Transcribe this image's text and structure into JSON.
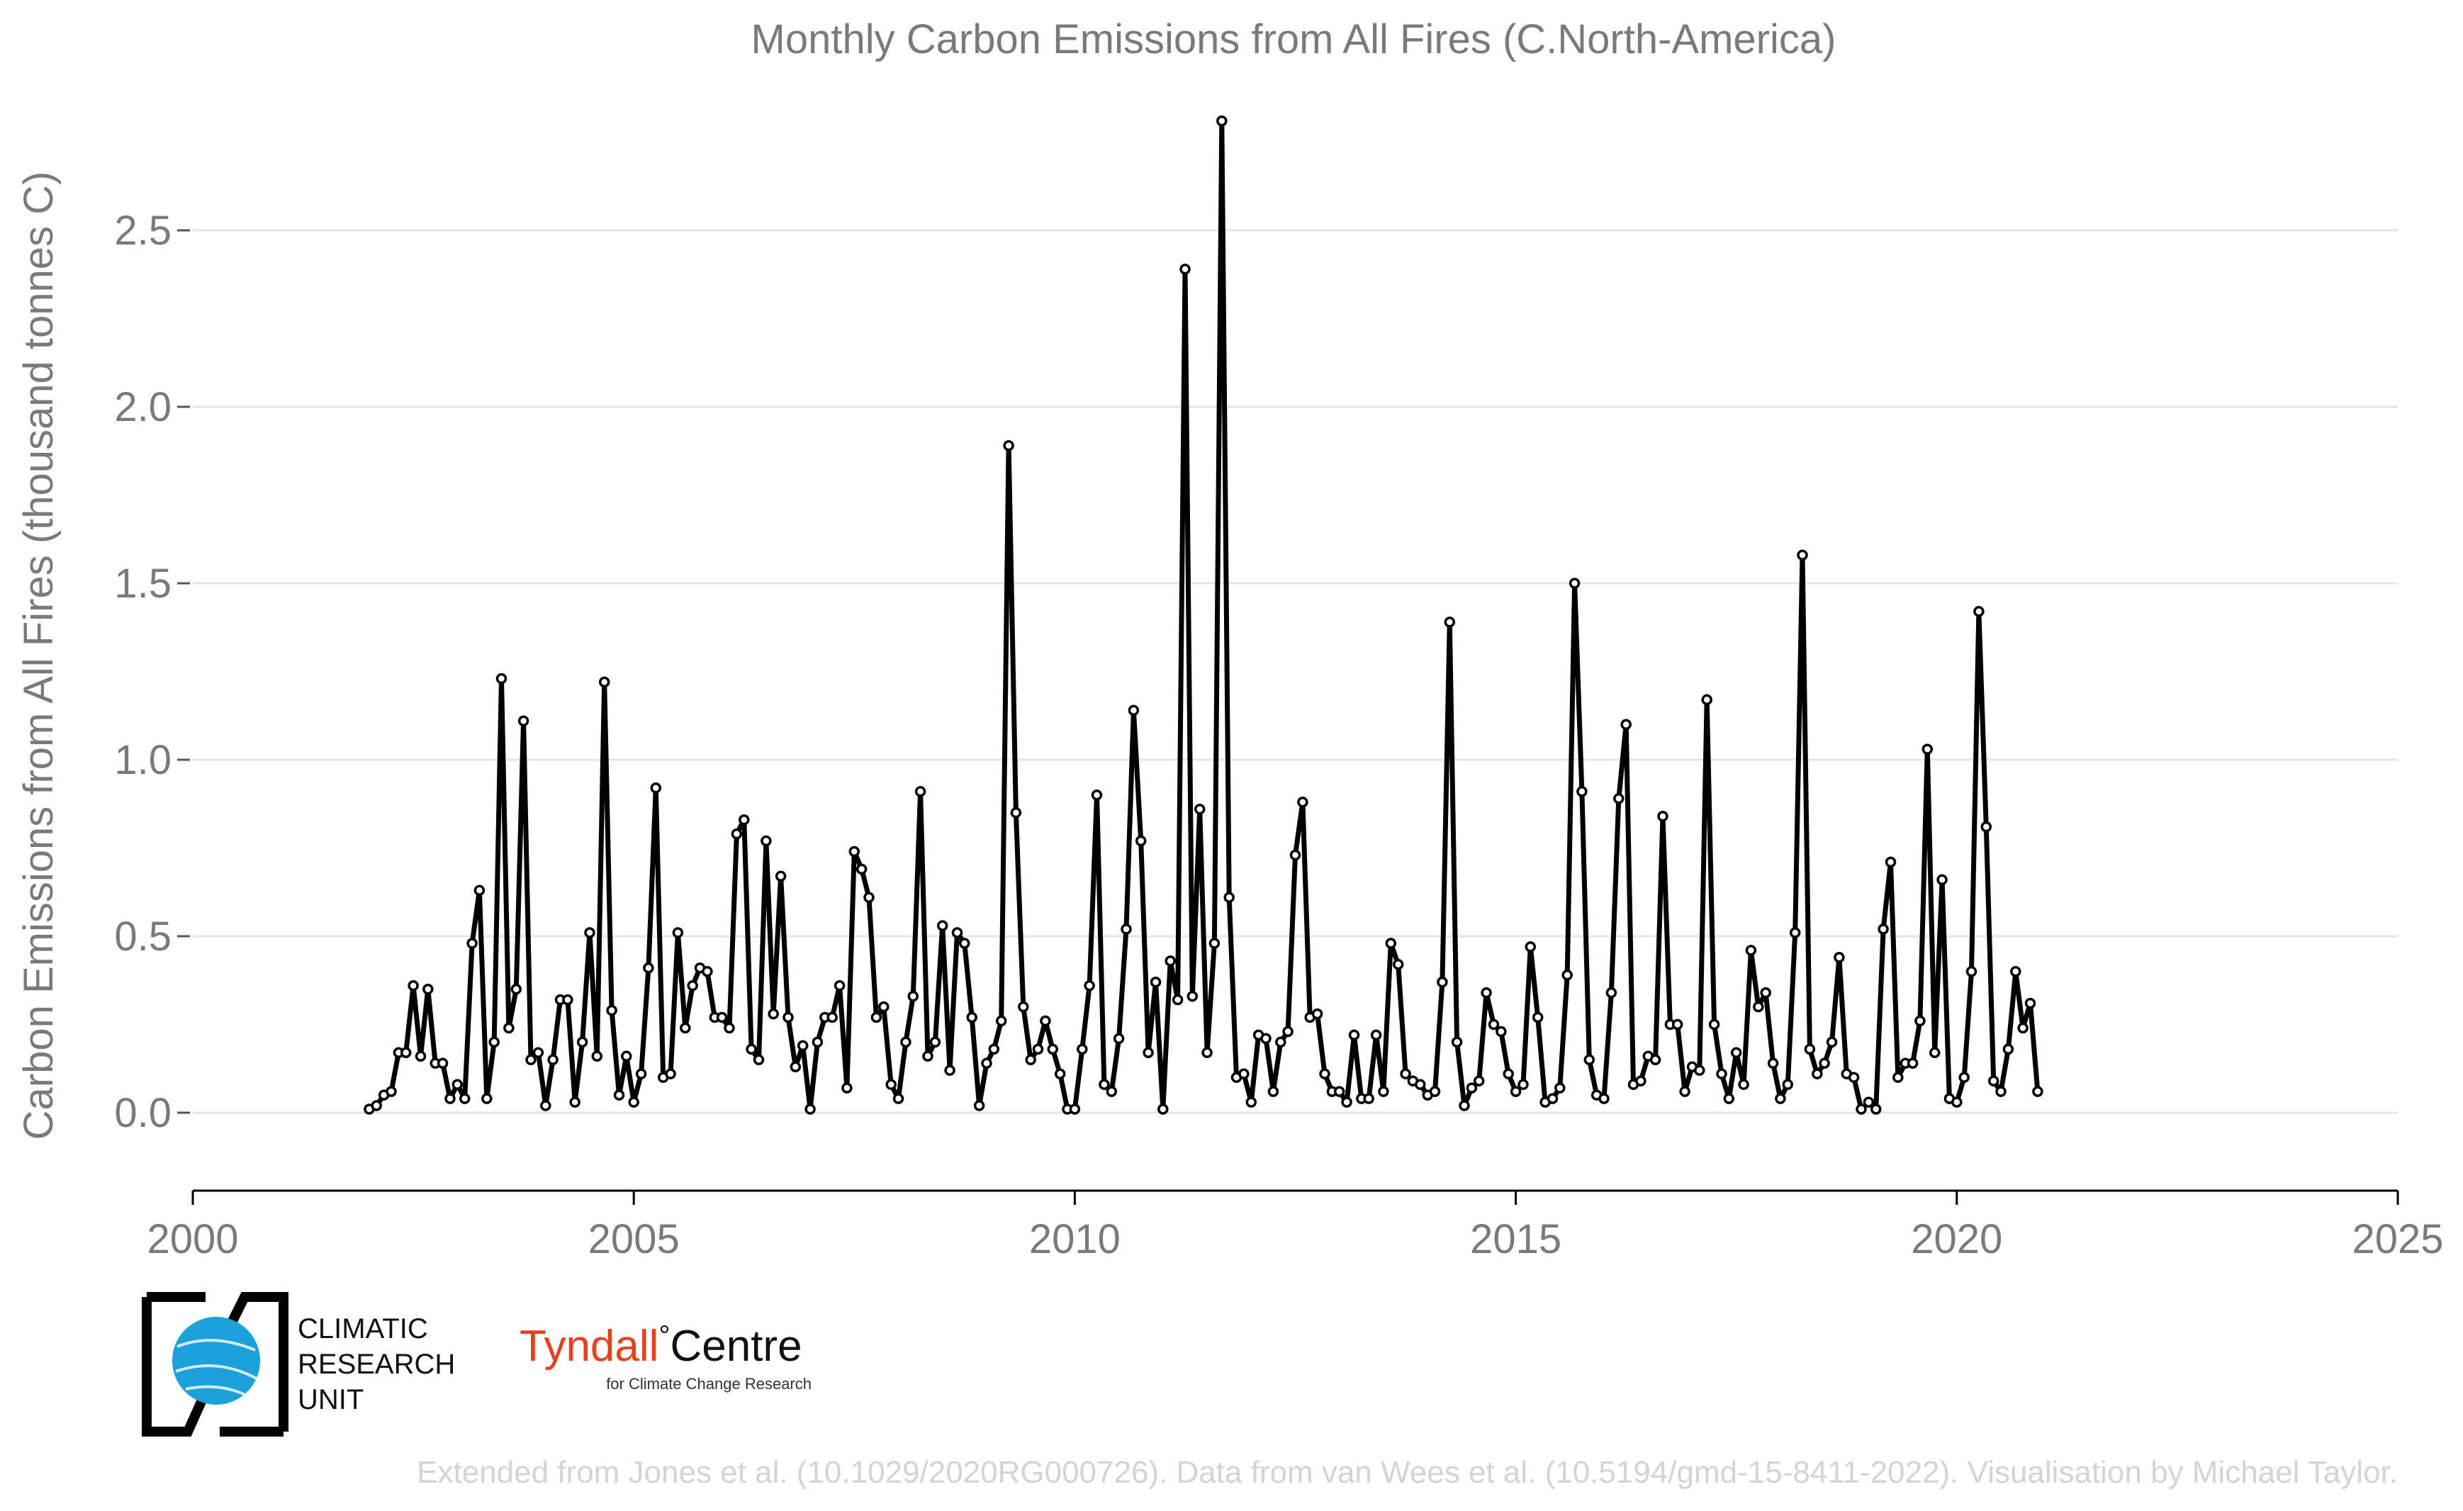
{
  "chart_data": {
    "type": "line",
    "title": "Monthly Carbon Emissions from All Fires (C.North-America)",
    "xlabel": "",
    "ylabel": "Carbon Emissions from All Fires (thousand tonnes C)",
    "xlim": [
      2000,
      2025
    ],
    "ylim": [
      -0.1,
      2.85
    ],
    "x_ticks": [
      2000,
      2005,
      2010,
      2015,
      2020,
      2025
    ],
    "y_ticks": [
      0.0,
      0.5,
      1.0,
      1.5,
      2.0,
      2.5
    ],
    "y_tick_labels": [
      "0.0",
      "0.5",
      "1.0",
      "1.5",
      "2.0",
      "2.5"
    ],
    "grid": "horizontal",
    "x_start": "2002-01",
    "x_end": "2020-12",
    "x_step": "month",
    "series": [
      {
        "name": "",
        "color": "#000000",
        "marker_fill": "#ffffff",
        "values": [
          0.01,
          0.02,
          0.05,
          0.06,
          0.17,
          0.17,
          0.36,
          0.16,
          0.35,
          0.14,
          0.14,
          0.04,
          0.08,
          0.04,
          0.48,
          0.63,
          0.04,
          0.2,
          1.23,
          0.24,
          0.35,
          1.11,
          0.15,
          0.17,
          0.02,
          0.15,
          0.32,
          0.32,
          0.03,
          0.2,
          0.51,
          0.16,
          1.22,
          0.29,
          0.05,
          0.16,
          0.03,
          0.11,
          0.41,
          0.92,
          0.1,
          0.11,
          0.51,
          0.24,
          0.36,
          0.41,
          0.4,
          0.27,
          0.27,
          0.24,
          0.79,
          0.83,
          0.18,
          0.15,
          0.77,
          0.28,
          0.67,
          0.27,
          0.13,
          0.19,
          0.01,
          0.2,
          0.27,
          0.27,
          0.36,
          0.07,
          0.74,
          0.69,
          0.61,
          0.27,
          0.3,
          0.08,
          0.04,
          0.2,
          0.33,
          0.91,
          0.16,
          0.2,
          0.53,
          0.12,
          0.51,
          0.48,
          0.27,
          0.02,
          0.14,
          0.18,
          0.26,
          1.89,
          0.85,
          0.3,
          0.15,
          0.18,
          0.26,
          0.18,
          0.11,
          0.01,
          0.01,
          0.18,
          0.36,
          0.9,
          0.08,
          0.06,
          0.21,
          0.52,
          1.14,
          0.77,
          0.17,
          0.37,
          0.01,
          0.43,
          0.32,
          2.39,
          0.33,
          0.86,
          0.17,
          0.48,
          2.81,
          0.61,
          0.1,
          0.11,
          0.03,
          0.22,
          0.21,
          0.06,
          0.2,
          0.23,
          0.73,
          0.88,
          0.27,
          0.28,
          0.11,
          0.06,
          0.06,
          0.03,
          0.22,
          0.04,
          0.04,
          0.22,
          0.06,
          0.48,
          0.42,
          0.11,
          0.09,
          0.08,
          0.05,
          0.06,
          0.37,
          1.39,
          0.2,
          0.02,
          0.07,
          0.09,
          0.34,
          0.25,
          0.23,
          0.11,
          0.06,
          0.08,
          0.47,
          0.27,
          0.03,
          0.04,
          0.07,
          0.39,
          1.5,
          0.91,
          0.15,
          0.05,
          0.04,
          0.34,
          0.89,
          1.1,
          0.08,
          0.09,
          0.16,
          0.15,
          0.84,
          0.25,
          0.25,
          0.06,
          0.13,
          0.12,
          1.17,
          0.25,
          0.11,
          0.04,
          0.17,
          0.08,
          0.46,
          0.3,
          0.34,
          0.14,
          0.04,
          0.08,
          0.51,
          1.58,
          0.18,
          0.11,
          0.14,
          0.2,
          0.44,
          0.11,
          0.1,
          0.01,
          0.03,
          0.01,
          0.52,
          0.71,
          0.1,
          0.14,
          0.14,
          0.26,
          1.03,
          0.17,
          0.66,
          0.04,
          0.03,
          0.1,
          0.4,
          1.42,
          0.81,
          0.09,
          0.06,
          0.18,
          0.4,
          0.24,
          0.31,
          0.06
        ]
      }
    ]
  },
  "footer": {
    "credit": "Extended from Jones et al. (10.1029/2020RG000726). Data from van Wees et al. (10.5194/gmd-15-8411-2022). Visualisation by Michael Taylor.",
    "cru_line1": "CLIMATIC",
    "cru_line2": "RESEARCH",
    "cru_line3": "UNIT",
    "tyndall_red": "Tyndall",
    "tyndall_degree": "°",
    "tyndall_black": "Centre",
    "tyndall_sub": "for Climate Change Research",
    "tyndall_color": "#e8401c",
    "cru_globe_color": "#1da1dc"
  }
}
